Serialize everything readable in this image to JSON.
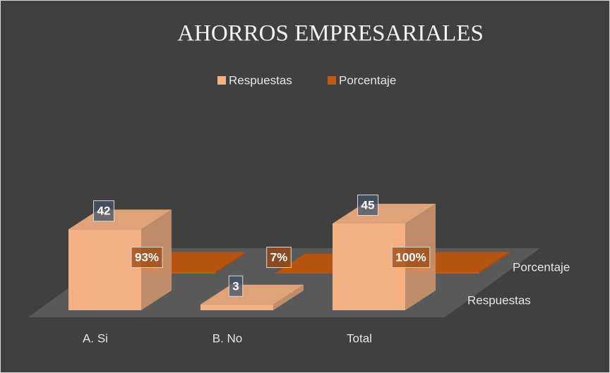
{
  "chart_data": {
    "type": "bar3d",
    "title": "AHORROS EMPRESARIALES",
    "categories": [
      "A. Si",
      "B. No",
      "Total"
    ],
    "series": [
      {
        "name": "Respuestas",
        "color": "#f4b183",
        "values": [
          42,
          3,
          45
        ]
      },
      {
        "name": "Porcentaje",
        "color": "#c55a11",
        "values": [
          0.93,
          0.07,
          1
        ],
        "value_labels": [
          "93%",
          "7%",
          "100%"
        ]
      }
    ],
    "legend": "top"
  }
}
